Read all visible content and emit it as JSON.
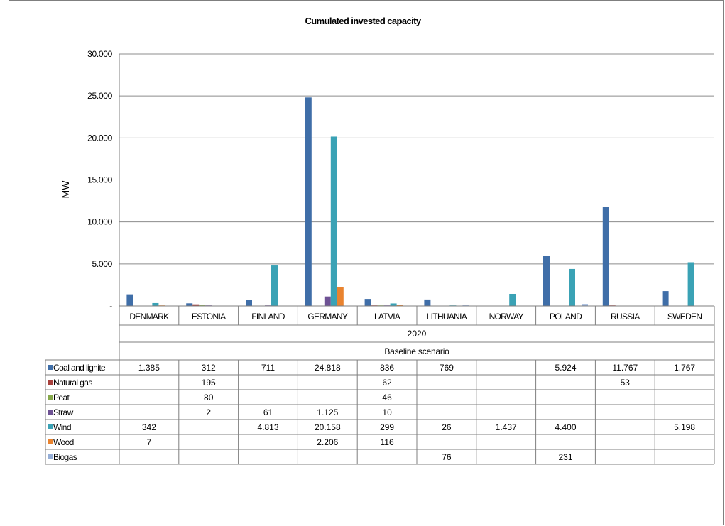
{
  "chart_data": {
    "type": "bar",
    "title": "Cumulated invested capacity",
    "ylabel": "MW",
    "ylim": [
      0,
      30000
    ],
    "yticks": [
      0,
      5000,
      10000,
      15000,
      20000,
      25000,
      30000
    ],
    "ytick_labels": [
      "-",
      "5.000",
      "10.000",
      "15.000",
      "20.000",
      "25.000",
      "30.000"
    ],
    "grid": true,
    "legend": "table-left",
    "categories": [
      "DENMARK",
      "ESTONIA",
      "FINLAND",
      "GERMANY",
      "LATVIA",
      "LITHUANIA",
      "NORWAY",
      "POLAND",
      "RUSSIA",
      "SWEDEN"
    ],
    "year_label": "2020",
    "scenario_label": "Baseline scenario",
    "series": [
      {
        "name": "Coal and lignite",
        "color": "#3f6ea8",
        "values": [
          1385,
          312,
          711,
          24818,
          836,
          769,
          null,
          5924,
          11767,
          1767
        ],
        "labels": [
          "1.385",
          "312",
          "711",
          "24.818",
          "836",
          "769",
          "",
          "5.924",
          "11.767",
          "1.767"
        ]
      },
      {
        "name": "Natural gas",
        "color": "#a8403c",
        "values": [
          null,
          195,
          null,
          null,
          62,
          null,
          null,
          null,
          53,
          null
        ],
        "labels": [
          "",
          "195",
          "",
          "",
          "62",
          "",
          "",
          "",
          "53",
          ""
        ]
      },
      {
        "name": "Peat",
        "color": "#86a94b",
        "values": [
          null,
          80,
          null,
          null,
          46,
          null,
          null,
          null,
          null,
          null
        ],
        "labels": [
          "",
          "80",
          "",
          "",
          "46",
          "",
          "",
          "",
          "",
          ""
        ]
      },
      {
        "name": "Straw",
        "color": "#6e5294",
        "values": [
          null,
          2,
          61,
          1125,
          10,
          null,
          null,
          null,
          null,
          null
        ],
        "labels": [
          "",
          "2",
          "61",
          "1.125",
          "10",
          "",
          "",
          "",
          "",
          ""
        ]
      },
      {
        "name": "Wind",
        "color": "#3aa2b5",
        "values": [
          342,
          null,
          4813,
          20158,
          299,
          26,
          1437,
          4400,
          null,
          5198
        ],
        "labels": [
          "342",
          "",
          "4.813",
          "20.158",
          "299",
          "26",
          "1.437",
          "4.400",
          "",
          "5.198"
        ]
      },
      {
        "name": "Wood",
        "color": "#e9832f",
        "values": [
          7,
          null,
          null,
          2206,
          116,
          null,
          null,
          null,
          null,
          null
        ],
        "labels": [
          "7",
          "",
          "",
          "2.206",
          "116",
          "",
          "",
          "",
          "",
          ""
        ]
      },
      {
        "name": "Biogas",
        "color": "#95aed7",
        "values": [
          null,
          null,
          null,
          null,
          null,
          76,
          null,
          231,
          null,
          null
        ],
        "labels": [
          "",
          "",
          "",
          "",
          "",
          "76",
          "",
          "231",
          "",
          ""
        ]
      }
    ]
  }
}
